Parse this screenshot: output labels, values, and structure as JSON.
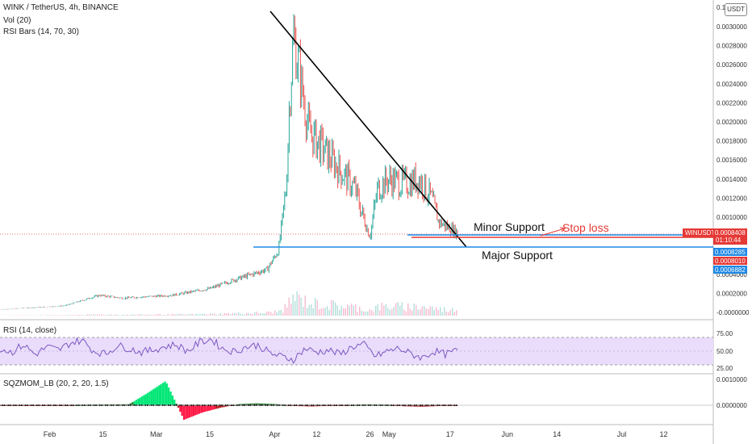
{
  "header": {
    "symbol": "WINK / TetherUS, 4h, BINANCE",
    "volume_label": "Vol (20)",
    "rsi_bars_label": "RSI Bars (14, 70, 30)",
    "currency_button": "USDT"
  },
  "rsi_pane": {
    "label": "RSI (14, close)",
    "ticks": [
      "75.00",
      "50.00",
      "25.00"
    ]
  },
  "mom_pane": {
    "label": "SQZMOM_LB (20, 2, 20, 1.5)",
    "ticks": [
      "0.0010000",
      "0.0000000"
    ]
  },
  "price_badges": [
    {
      "text": "WINUSDT",
      "value": "0.0008408",
      "sub": "01:10:44",
      "color": "#e53935"
    },
    {
      "value": "0.0008285",
      "color": "#1e88e5"
    },
    {
      "value": "0.0008010",
      "color": "#e53935"
    },
    {
      "value": "0.0006882",
      "color": "#1e88e5"
    }
  ],
  "annotations": {
    "minor_support": "Minor Support",
    "stop_loss": "Stop loss",
    "major_support": "Major Support"
  },
  "chart_data": {
    "type": "line",
    "title": "WINK / TetherUS, 4h, BINANCE",
    "x_ticks": [
      "Feb",
      "15",
      "Mar",
      "15",
      "Apr",
      "12",
      "26",
      "May",
      "17",
      "Jun",
      "14",
      "Jul",
      "12"
    ],
    "y_ticks": [
      "0.0030000",
      "0.0028000",
      "0.0026000",
      "0.0024000",
      "0.0022000",
      "0.0020000",
      "0.0018000",
      "0.0016000",
      "0.0014000",
      "0.0012000",
      "0.0010000",
      "0.0004000",
      "0.0002000",
      "-0.0000000"
    ],
    "y_top_label": "0.1",
    "price_path": [
      [
        "2021-01-19",
        3e-05
      ],
      [
        "2021-02-05",
        7e-05
      ],
      [
        "2021-02-14",
        0.00018
      ],
      [
        "2021-02-20",
        0.00015
      ],
      [
        "2021-03-05",
        0.00018
      ],
      [
        "2021-03-15",
        0.00025
      ],
      [
        "2021-03-22",
        0.00035
      ],
      [
        "2021-03-30",
        0.00045
      ],
      [
        "2021-04-02",
        0.00065
      ],
      [
        "2021-04-04",
        0.0013
      ],
      [
        "2021-04-05",
        0.0023
      ],
      [
        "2021-04-06",
        0.0029
      ],
      [
        "2021-04-08",
        0.0024
      ],
      [
        "2021-04-10",
        0.0019
      ],
      [
        "2021-04-14",
        0.0017
      ],
      [
        "2021-04-18",
        0.0015
      ],
      [
        "2021-04-22",
        0.0013
      ],
      [
        "2021-04-25",
        0.0009
      ],
      [
        "2021-04-26",
        0.0008
      ],
      [
        "2021-04-28",
        0.0013
      ],
      [
        "2021-05-01",
        0.0014
      ],
      [
        "2021-05-05",
        0.00135
      ],
      [
        "2021-05-09",
        0.0014
      ],
      [
        "2021-05-12",
        0.0012
      ],
      [
        "2021-05-14",
        0.00095
      ],
      [
        "2021-05-17",
        0.00088
      ],
      [
        "2021-05-19",
        0.00084
      ]
    ],
    "rsi_series": [
      55,
      48,
      62,
      44,
      58,
      52,
      65,
      70,
      50,
      45,
      60,
      55,
      48,
      52,
      58,
      62,
      50,
      66,
      72,
      54,
      49,
      58,
      61,
      46,
      40,
      35,
      55,
      48,
      52,
      44,
      58,
      62,
      40,
      50,
      55,
      45,
      38,
      50,
      44,
      52
    ],
    "momentum_series": [
      0,
      0,
      0,
      0,
      0,
      2e-05,
      3e-05,
      4e-05,
      0.0005,
      0.001,
      -0.0006,
      -0.0003,
      -0.0001,
      5e-05,
      8e-05,
      5e-05,
      -3e-05,
      -5e-05,
      -2e-05,
      0,
      3e-05,
      2e-05,
      -4e-05,
      -6e-05,
      -3e-05,
      0
    ],
    "trendline": [
      [
        "2021-04-01",
        0.0032
      ],
      [
        "2021-05-29",
        0.00065
      ]
    ],
    "levels": [
      {
        "name": "Major Support",
        "value": 0.00068,
        "color": "#1e88e5"
      },
      {
        "name": "Minor Support",
        "value": 0.00083,
        "color": "#1e88e5"
      },
      {
        "name": "Stop loss",
        "value": 0.0008,
        "color": "#e53935"
      }
    ]
  }
}
